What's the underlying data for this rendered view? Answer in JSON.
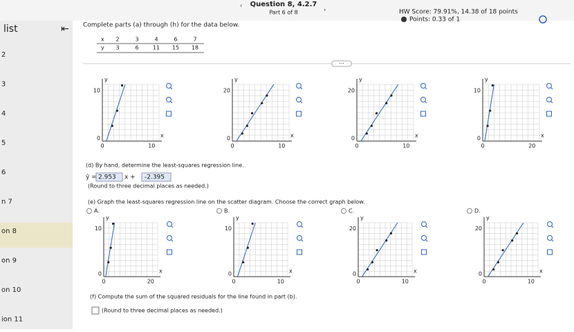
{
  "header": {
    "question": "Question 8, 4.2.7",
    "part": "Part 6 of 8",
    "score": "HW Score: 79.91%, 14.38 of 18 points",
    "points": "Points: 0.33 of 1"
  },
  "sidebar": {
    "title": "list",
    "items": [
      "2",
      "3",
      "4",
      "5",
      "6",
      "n 7",
      "on 8",
      "on 9",
      "on 10",
      "ion 11"
    ]
  },
  "prompt": "Complete parts (a) through (h) for the data below.",
  "table": {
    "row_labels": [
      "x",
      "y"
    ],
    "x": [
      2,
      3,
      4,
      6,
      7
    ],
    "y": [
      3,
      6,
      11,
      15,
      18
    ]
  },
  "axis_names": {
    "x": "x",
    "y": "y"
  },
  "graphs": [
    {
      "ymax": 10,
      "xmax": 10,
      "min": 0
    },
    {
      "ymax": 20,
      "xmax": 10,
      "min": 0
    },
    {
      "ymax": 20,
      "xmax": 10,
      "min": 0
    },
    {
      "ymax": 10,
      "xmax": 20,
      "min": 0
    }
  ],
  "part_d": {
    "text": "(d) By hand, determine the least-squares regression line.",
    "yhat": "ŷ =",
    "slope": 2.953,
    "x_plus": "x +",
    "intercept": -2.395,
    "note": "(Round to three decimal places as needed.)"
  },
  "part_e": {
    "text": "(e) Graph the least-squares regression line on the scatter diagram. Choose the correct graph below.",
    "options": [
      {
        "label": "A.",
        "graph": {
          "ymax": 10,
          "xmax": 20,
          "min": 0
        }
      },
      {
        "label": "B.",
        "graph": {
          "ymax": 10,
          "xmax": 10,
          "min": 0
        }
      },
      {
        "label": "C.",
        "graph": {
          "ymax": 20,
          "xmax": 10,
          "min": 0
        }
      },
      {
        "label": "D.",
        "graph": {
          "ymax": 20,
          "xmax": 10,
          "min": 0
        }
      }
    ]
  },
  "part_f": {
    "text": "(f) Compute the sum of the squared residuals for the line found in part (b).",
    "note": "(Round to three decimal places as needed.)"
  }
}
